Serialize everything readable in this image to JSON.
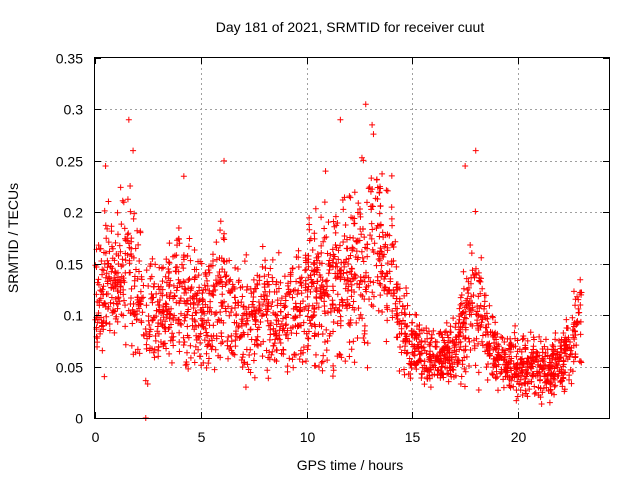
{
  "chart_data": {
    "type": "scatter",
    "title": "Day 181 of 2021, SRMTID for receiver cuut",
    "xlabel": "GPS time / hours",
    "ylabel": "SRMTID / TECUs",
    "xlim": [
      0,
      24.3
    ],
    "ylim": [
      0,
      0.35
    ],
    "x_ticks": [
      "0",
      "5",
      "10",
      "15",
      "20"
    ],
    "y_ticks": [
      "0",
      "0.05",
      "0.1",
      "0.15",
      "0.2",
      "0.25",
      "0.3",
      "0.35"
    ],
    "grid": true,
    "marker": "+",
    "color": "#ff0000",
    "profile": {
      "x": [
        0,
        0.5,
        1,
        1.5,
        2,
        2.5,
        3,
        3.5,
        4,
        4.5,
        5,
        5.5,
        6,
        6.5,
        7,
        7.5,
        8,
        8.5,
        9,
        9.5,
        10,
        10.5,
        11,
        11.5,
        12,
        12.5,
        13,
        13.5,
        14,
        14.5,
        15,
        15.5,
        16,
        16.5,
        17,
        17.5,
        18,
        18.5,
        19,
        19.5,
        20,
        20.5,
        21,
        21.5,
        22,
        22.5,
        23
      ],
      "center": [
        0.1,
        0.13,
        0.13,
        0.15,
        0.13,
        0.1,
        0.1,
        0.11,
        0.12,
        0.11,
        0.1,
        0.11,
        0.12,
        0.1,
        0.09,
        0.1,
        0.11,
        0.1,
        0.1,
        0.11,
        0.12,
        0.13,
        0.12,
        0.13,
        0.14,
        0.15,
        0.16,
        0.17,
        0.15,
        0.09,
        0.07,
        0.065,
        0.06,
        0.06,
        0.065,
        0.09,
        0.13,
        0.08,
        0.06,
        0.055,
        0.05,
        0.05,
        0.05,
        0.045,
        0.055,
        0.07,
        0.1
      ],
      "spread": [
        0.035,
        0.05,
        0.04,
        0.06,
        0.05,
        0.04,
        0.035,
        0.035,
        0.04,
        0.04,
        0.04,
        0.04,
        0.045,
        0.035,
        0.035,
        0.035,
        0.035,
        0.035,
        0.035,
        0.04,
        0.04,
        0.05,
        0.05,
        0.05,
        0.05,
        0.06,
        0.07,
        0.06,
        0.05,
        0.03,
        0.02,
        0.02,
        0.02,
        0.02,
        0.025,
        0.04,
        0.06,
        0.03,
        0.02,
        0.02,
        0.02,
        0.02,
        0.02,
        0.02,
        0.02,
        0.025,
        0.03
      ]
    },
    "outliers": [
      {
        "x": 0.5,
        "y": 0.245
      },
      {
        "x": 1.6,
        "y": 0.29
      },
      {
        "x": 1.8,
        "y": 0.26
      },
      {
        "x": 4.2,
        "y": 0.235
      },
      {
        "x": 6.1,
        "y": 0.25
      },
      {
        "x": 10.9,
        "y": 0.24
      },
      {
        "x": 11.6,
        "y": 0.29
      },
      {
        "x": 12.8,
        "y": 0.305
      },
      {
        "x": 13.1,
        "y": 0.285
      },
      {
        "x": 17.5,
        "y": 0.245
      },
      {
        "x": 18.0,
        "y": 0.26
      },
      {
        "x": 2.4,
        "y": 0.0
      }
    ]
  }
}
